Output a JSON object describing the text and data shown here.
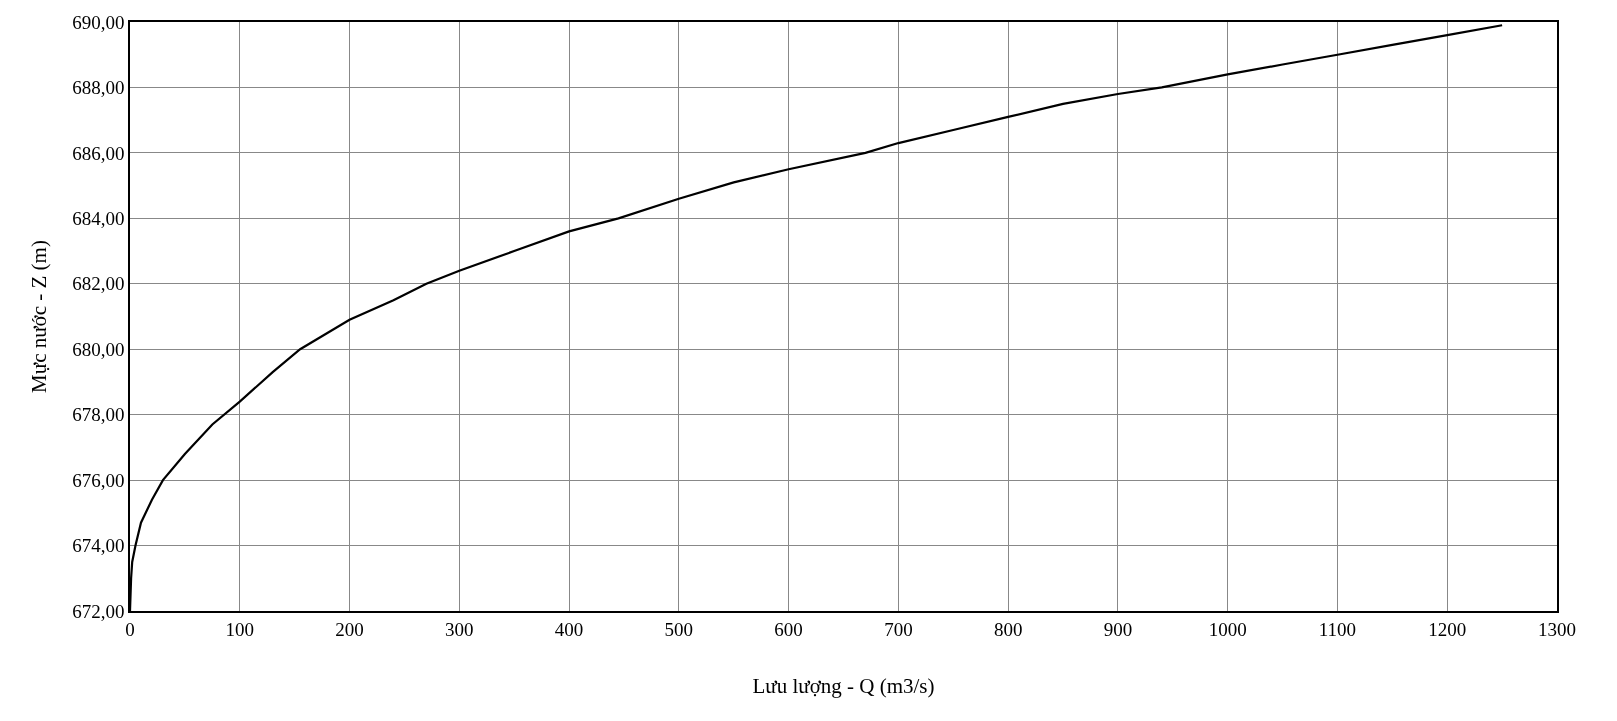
{
  "chart_data": {
    "type": "line",
    "xlabel": "Lưu lượng - Q (m3/s)",
    "ylabel": "Mực nước - Z (m)",
    "series": [
      {
        "color": "#000000",
        "x": [
          0,
          1,
          2,
          5,
          10,
          20,
          30,
          50,
          75,
          100,
          130,
          155,
          200,
          240,
          270,
          300,
          350,
          400,
          445,
          500,
          550,
          600,
          670,
          700,
          750,
          800,
          850,
          900,
          940,
          1000,
          1050,
          1100,
          1150,
          1200,
          1250
        ],
        "values": [
          672.0,
          673.0,
          673.5,
          674.0,
          674.7,
          675.4,
          676.0,
          676.8,
          677.7,
          678.4,
          679.3,
          680.0,
          680.9,
          681.5,
          682.0,
          682.4,
          683.0,
          683.6,
          684.0,
          684.6,
          685.1,
          685.5,
          686.0,
          686.3,
          686.7,
          687.1,
          687.5,
          687.8,
          688.0,
          688.4,
          688.7,
          689.0,
          689.3,
          689.6,
          689.9
        ]
      }
    ],
    "xlim": [
      0,
      1300
    ],
    "ylim": [
      672,
      690
    ],
    "xticks": [
      0,
      100,
      200,
      300,
      400,
      500,
      600,
      700,
      800,
      900,
      1000,
      1100,
      1200,
      1300
    ],
    "yticks": [
      {
        "value": 672,
        "label": "672,00"
      },
      {
        "value": 674,
        "label": "674,00"
      },
      {
        "value": 676,
        "label": "676,00"
      },
      {
        "value": 678,
        "label": "678,00"
      },
      {
        "value": 680,
        "label": "680,00"
      },
      {
        "value": 682,
        "label": "682,00"
      },
      {
        "value": 684,
        "label": "684,00"
      },
      {
        "value": 686,
        "label": "686,00"
      },
      {
        "value": 688,
        "label": "688,00"
      },
      {
        "value": 690,
        "label": "690,00"
      }
    ],
    "grid": true,
    "marker": "none",
    "line_style": "solid"
  }
}
